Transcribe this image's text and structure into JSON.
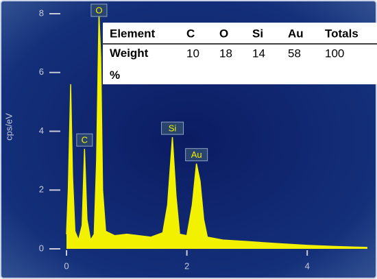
{
  "chart_data": {
    "type": "area",
    "y_label": "cps/eV",
    "x": [
      0.0,
      0.03,
      0.07,
      0.1,
      0.14,
      0.2,
      0.26,
      0.3,
      0.34,
      0.4,
      0.46,
      0.5,
      0.54,
      0.57,
      0.6,
      0.65,
      0.8,
      1.0,
      1.2,
      1.4,
      1.6,
      1.68,
      1.76,
      1.82,
      1.88,
      2.0,
      2.09,
      2.16,
      2.22,
      2.28,
      2.34,
      2.6,
      3.0,
      3.5,
      4.0,
      4.5,
      5.0
    ],
    "series": [
      {
        "name": "spectrum",
        "color": "#f2f200",
        "values": [
          0.5,
          2.0,
          5.6,
          2.5,
          0.6,
          0.3,
          0.8,
          3.4,
          1.0,
          0.3,
          0.5,
          3.0,
          8.0,
          6.5,
          2.0,
          0.6,
          0.45,
          0.5,
          0.45,
          0.4,
          0.55,
          1.5,
          3.8,
          1.8,
          0.5,
          0.45,
          1.5,
          2.9,
          2.3,
          1.0,
          0.4,
          0.3,
          0.25,
          0.18,
          0.12,
          0.08,
          0.05
        ]
      }
    ],
    "xlim": [
      0,
      5
    ],
    "xticks": [
      0,
      2,
      4
    ],
    "ylim": [
      0,
      8
    ],
    "yticks": [
      0,
      2,
      4,
      6,
      8
    ],
    "annotations": [
      {
        "text": "C",
        "x": 0.3,
        "y": 3.4
      },
      {
        "text": "O",
        "x": 0.54,
        "y": 8.0
      },
      {
        "text": "Si",
        "x": 1.76,
        "y": 3.8
      },
      {
        "text": "Au",
        "x": 2.16,
        "y": 2.9
      }
    ]
  },
  "table": {
    "header": [
      "Element",
      "C",
      "O",
      "Si",
      "Au",
      "Totals"
    ],
    "rows": [
      [
        "Weight %",
        "10",
        "18",
        "14",
        "58",
        "100"
      ]
    ]
  }
}
